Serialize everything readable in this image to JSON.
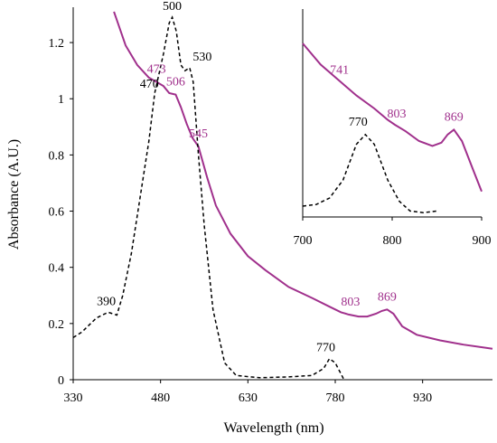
{
  "chart_data": [
    {
      "type": "line",
      "xlabel": "Wavelength (nm)",
      "ylabel": "Absorbance (A.U.)",
      "xlim": [
        330,
        1050
      ],
      "ylim": [
        0,
        1.3
      ],
      "xticks": [
        330,
        480,
        630,
        780,
        930
      ],
      "yticks": [
        0,
        0.2,
        0.4,
        0.6,
        0.8,
        1,
        1.2
      ],
      "grid": false,
      "colors": {
        "solid": "#a0308c",
        "dashed": "#000000"
      },
      "series": [
        {
          "style": "solid",
          "color": "#a0308c",
          "points": [
            [
              400,
              1.31
            ],
            [
              420,
              1.19
            ],
            [
              440,
              1.12
            ],
            [
              460,
              1.075
            ],
            [
              473,
              1.06
            ],
            [
              485,
              1.045
            ],
            [
              495,
              1.02
            ],
            [
              506,
              1.015
            ],
            [
              515,
              0.97
            ],
            [
              525,
              0.91
            ],
            [
              535,
              0.86
            ],
            [
              545,
              0.83
            ],
            [
              560,
              0.72
            ],
            [
              575,
              0.62
            ],
            [
              600,
              0.52
            ],
            [
              630,
              0.44
            ],
            [
              660,
              0.39
            ],
            [
              700,
              0.33
            ],
            [
              741,
              0.29
            ],
            [
              770,
              0.26
            ],
            [
              790,
              0.24
            ],
            [
              803,
              0.232
            ],
            [
              820,
              0.225
            ],
            [
              835,
              0.225
            ],
            [
              850,
              0.235
            ],
            [
              860,
              0.245
            ],
            [
              869,
              0.25
            ],
            [
              880,
              0.235
            ],
            [
              895,
              0.19
            ],
            [
              920,
              0.16
            ],
            [
              960,
              0.14
            ],
            [
              1000,
              0.125
            ],
            [
              1050,
              0.11
            ]
          ]
        },
        {
          "style": "dashed",
          "color": "#000000",
          "points": [
            [
              330,
              0.15
            ],
            [
              345,
              0.17
            ],
            [
              370,
              0.22
            ],
            [
              390,
              0.24
            ],
            [
              405,
              0.23
            ],
            [
              415,
              0.3
            ],
            [
              430,
              0.45
            ],
            [
              445,
              0.65
            ],
            [
              460,
              0.85
            ],
            [
              470,
              1.02
            ],
            [
              485,
              1.16
            ],
            [
              495,
              1.27
            ],
            [
              500,
              1.29
            ],
            [
              507,
              1.24
            ],
            [
              515,
              1.12
            ],
            [
              522,
              1.1
            ],
            [
              530,
              1.11
            ],
            [
              536,
              1.06
            ],
            [
              545,
              0.8
            ],
            [
              555,
              0.55
            ],
            [
              570,
              0.25
            ],
            [
              590,
              0.06
            ],
            [
              610,
              0.015
            ],
            [
              650,
              0.007
            ],
            [
              700,
              0.01
            ],
            [
              740,
              0.015
            ],
            [
              760,
              0.04
            ],
            [
              770,
              0.075
            ],
            [
              780,
              0.06
            ],
            [
              795,
              0.0
            ]
          ]
        }
      ],
      "annotations": [
        {
          "text": "500",
          "x": 500,
          "y": 1.29,
          "color": "#000000"
        },
        {
          "text": "530",
          "x": 530,
          "y": 1.11,
          "color": "#000000"
        },
        {
          "text": "470",
          "x": 470,
          "y": 1.02,
          "color": "#000000"
        },
        {
          "text": "390",
          "x": 390,
          "y": 0.24,
          "color": "#000000"
        },
        {
          "text": "770",
          "x": 770,
          "y": 0.075,
          "color": "#000000"
        },
        {
          "text": "473",
          "x": 473,
          "y": 1.06,
          "color": "#a0308c"
        },
        {
          "text": "506",
          "x": 506,
          "y": 1.015,
          "color": "#a0308c"
        },
        {
          "text": "545",
          "x": 545,
          "y": 0.83,
          "color": "#a0308c"
        },
        {
          "text": "803",
          "x": 803,
          "y": 0.232,
          "color": "#a0308c"
        },
        {
          "text": "869",
          "x": 869,
          "y": 0.25,
          "color": "#a0308c"
        }
      ]
    },
    {
      "type": "line",
      "inset": true,
      "xlim": [
        700,
        900
      ],
      "xticks": [
        700,
        800,
        900
      ],
      "yticks": [],
      "grid": false,
      "series": [
        {
          "style": "solid",
          "color": "#a0308c",
          "points": [
            [
              700,
              1.0
            ],
            [
              720,
              0.87
            ],
            [
              741,
              0.77
            ],
            [
              760,
              0.68
            ],
            [
              780,
              0.6
            ],
            [
              795,
              0.53
            ],
            [
              803,
              0.5
            ],
            [
              815,
              0.46
            ],
            [
              830,
              0.4
            ],
            [
              845,
              0.37
            ],
            [
              855,
              0.39
            ],
            [
              862,
              0.44
            ],
            [
              869,
              0.47
            ],
            [
              878,
              0.4
            ],
            [
              890,
              0.23
            ],
            [
              900,
              0.09
            ]
          ]
        },
        {
          "style": "dashed",
          "color": "#000000",
          "points": [
            [
              700,
              0.0
            ],
            [
              715,
              0.01
            ],
            [
              730,
              0.05
            ],
            [
              745,
              0.16
            ],
            [
              760,
              0.38
            ],
            [
              770,
              0.44
            ],
            [
              780,
              0.38
            ],
            [
              795,
              0.16
            ],
            [
              808,
              0.03
            ],
            [
              820,
              -0.03
            ],
            [
              835,
              -0.04
            ],
            [
              850,
              -0.03
            ]
          ]
        }
      ],
      "annotations": [
        {
          "text": "741",
          "x": 741,
          "y": 0.77,
          "color": "#a0308c"
        },
        {
          "text": "803",
          "x": 803,
          "y": 0.5,
          "color": "#a0308c"
        },
        {
          "text": "869",
          "x": 869,
          "y": 0.47,
          "color": "#a0308c"
        },
        {
          "text": "770",
          "x": 770,
          "y": 0.44,
          "color": "#000000"
        }
      ]
    }
  ]
}
